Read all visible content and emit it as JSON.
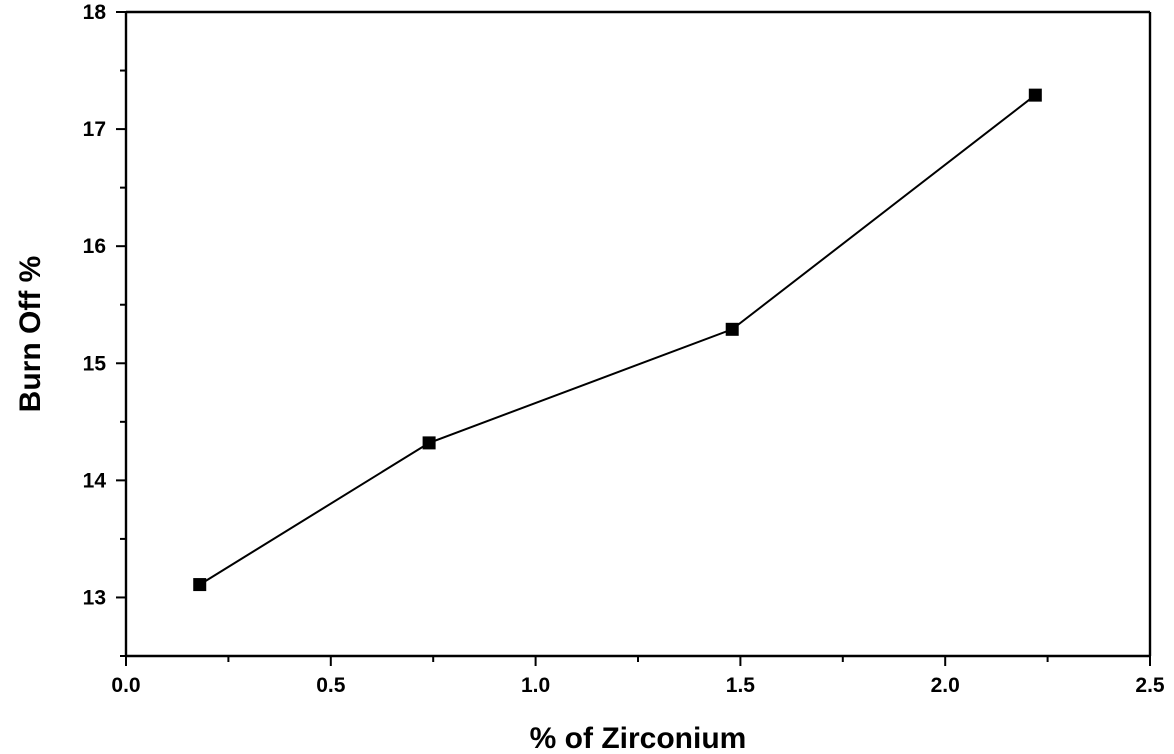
{
  "chart_data": {
    "type": "line",
    "xlabel": "% of Zirconium",
    "ylabel": "Burn Off %",
    "xlim": [
      0.0,
      2.5
    ],
    "ylim": [
      12.5,
      18
    ],
    "x_ticks": [
      "0.0",
      "0.5",
      "1.0",
      "1.5",
      "2.0",
      "2.5"
    ],
    "x_tick_values": [
      0.0,
      0.5,
      1.0,
      1.5,
      2.0,
      2.5
    ],
    "y_ticks": [
      "13",
      "14",
      "15",
      "16",
      "17",
      "18"
    ],
    "y_tick_values": [
      13,
      14,
      15,
      16,
      17,
      18
    ],
    "grid": false,
    "series": [
      {
        "marker": "square",
        "color": "#000000",
        "x": [
          0.18,
          0.74,
          1.48,
          2.22
        ],
        "y": [
          13.11,
          14.32,
          15.29,
          17.29
        ]
      }
    ]
  }
}
